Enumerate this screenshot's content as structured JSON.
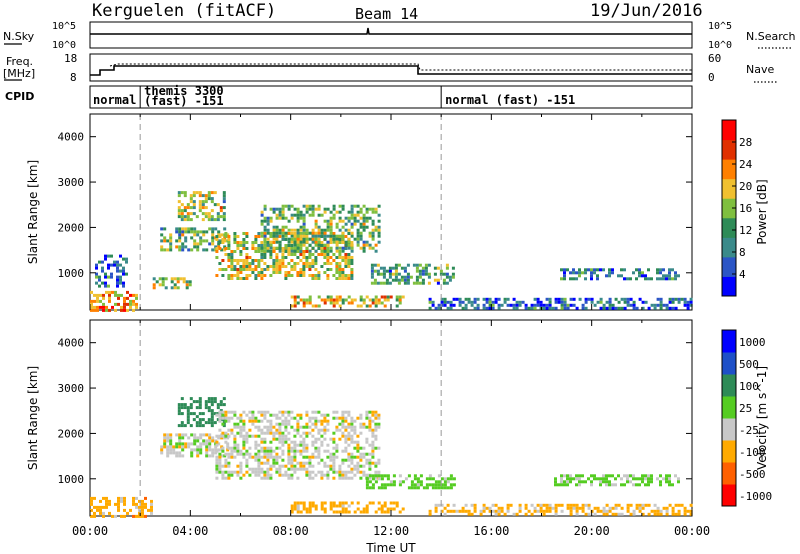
{
  "header": {
    "station": "Kerguelen (fitACF)",
    "beam": "Beam 14",
    "date": "19/Jun/2016"
  },
  "top_panels": {
    "nsky_label": "N.Sky",
    "nsky_ticks": [
      "10^5",
      "10^0"
    ],
    "nsearch_label": "N.Search",
    "nsearch_ticks": [
      "10^5",
      "10^0"
    ],
    "freq_label": "Freq.",
    "freq_unit": "[MHz]",
    "freq_ticks": [
      "18",
      "8"
    ],
    "nave_label": "Nave",
    "nave_ticks": [
      "60",
      "0"
    ],
    "cpid_label": "CPID",
    "cpid_segments": [
      {
        "x": 0.0,
        "label": "normal"
      },
      {
        "x": 2.0,
        "label": "themis 3300"
      },
      {
        "x": 2.0,
        "label": "(fast) -151"
      },
      {
        "x": 14.0,
        "label": "normal (fast) -151"
      }
    ]
  },
  "x_axis": {
    "label": "Time UT",
    "ticks": [
      "00:00",
      "04:00",
      "08:00",
      "12:00",
      "16:00",
      "20:00",
      "00:00"
    ]
  },
  "panels": {
    "power": {
      "ylabel": "Slant Range [km]",
      "cbar_label": "Power [dB]",
      "cbar_ticks": [
        "28",
        "24",
        "20",
        "16",
        "12",
        "8",
        "4"
      ]
    },
    "velocity": {
      "ylabel": "Slant Range [km]",
      "cbar_label": "Velocity [m s^-1]",
      "cbar_ticks": [
        "1000",
        "500",
        "100",
        "25",
        "-25",
        "-100",
        "-500",
        "-1000"
      ]
    }
  },
  "chart_data": [
    {
      "type": "heatmap",
      "title": "Power",
      "xlabel": "Time UT",
      "ylabel": "Slant Range [km]",
      "xlim": [
        0,
        24
      ],
      "ylim": [
        180,
        4500
      ],
      "yticks": [
        1000,
        2000,
        3000,
        4000
      ],
      "colorbar": {
        "label": "Power [dB]",
        "range": [
          0,
          32
        ],
        "ticks": [
          4,
          8,
          12,
          16,
          20,
          24,
          28
        ]
      },
      "regions": [
        {
          "t0": 0.0,
          "t1": 1.8,
          "r0": 200,
          "r1": 600,
          "value": 24
        },
        {
          "t0": 0.2,
          "t1": 1.5,
          "r0": 700,
          "r1": 1400,
          "value": 6
        },
        {
          "t0": 2.8,
          "t1": 5.5,
          "r0": 1500,
          "r1": 2000,
          "value": 14
        },
        {
          "t0": 3.5,
          "t1": 5.3,
          "r0": 2200,
          "r1": 2800,
          "value": 16
        },
        {
          "t0": 5.0,
          "t1": 10.5,
          "r0": 900,
          "r1": 1900,
          "value": 18
        },
        {
          "t0": 6.8,
          "t1": 11.5,
          "r0": 1500,
          "r1": 2500,
          "value": 14
        },
        {
          "t0": 11.2,
          "t1": 14.5,
          "r0": 750,
          "r1": 1200,
          "value": 12
        },
        {
          "t0": 8.0,
          "t1": 12.5,
          "r0": 250,
          "r1": 500,
          "value": 20
        },
        {
          "t0": 2.5,
          "t1": 4.0,
          "r0": 650,
          "r1": 900,
          "value": 16
        },
        {
          "t0": 18.5,
          "t1": 23.5,
          "r0": 900,
          "r1": 1100,
          "value": 8
        },
        {
          "t0": 13.5,
          "t1": 24.0,
          "r0": 200,
          "r1": 450,
          "value": 6
        }
      ]
    },
    {
      "type": "heatmap",
      "title": "Velocity",
      "xlabel": "Time UT",
      "ylabel": "Slant Range [km]",
      "xlim": [
        0,
        24
      ],
      "ylim": [
        180,
        4500
      ],
      "yticks": [
        1000,
        2000,
        3000,
        4000
      ],
      "colorbar": {
        "label": "Velocity [m s^-1]",
        "levels": [
          -1000,
          -500,
          -100,
          -25,
          25,
          100,
          500,
          1000
        ]
      },
      "regions": [
        {
          "t0": 0.0,
          "t1": 2.5,
          "r0": 200,
          "r1": 600,
          "value": -60
        },
        {
          "t0": 2.8,
          "t1": 5.5,
          "r0": 1500,
          "r1": 2000,
          "value": 0
        },
        {
          "t0": 3.5,
          "t1": 5.3,
          "r0": 2200,
          "r1": 2800,
          "value": 200
        },
        {
          "t0": 5.0,
          "t1": 11.5,
          "r0": 1000,
          "r1": 2500,
          "value": 0
        },
        {
          "t0": 11.0,
          "t1": 14.5,
          "r0": 800,
          "r1": 1100,
          "value": 60
        },
        {
          "t0": 8.0,
          "t1": 12.5,
          "r0": 250,
          "r1": 500,
          "value": -60
        },
        {
          "t0": 18.5,
          "t1": 23.5,
          "r0": 900,
          "r1": 1100,
          "value": 40
        },
        {
          "t0": 13.5,
          "t1": 24.0,
          "r0": 200,
          "r1": 450,
          "value": -40
        }
      ]
    }
  ],
  "colors": {
    "power_scale": [
      "#0000ff",
      "#2b55c6",
      "#3a8a8a",
      "#2e8b57",
      "#7fbf3f",
      "#f0c030",
      "#ff8000",
      "#e03000",
      "#ff0000"
    ],
    "velocity_scale": [
      "#ff0000",
      "#ff6000",
      "#ffaa00",
      "#c8c8c8",
      "#55cc22",
      "#2e8b57",
      "#1e50c8",
      "#0000ff"
    ]
  }
}
